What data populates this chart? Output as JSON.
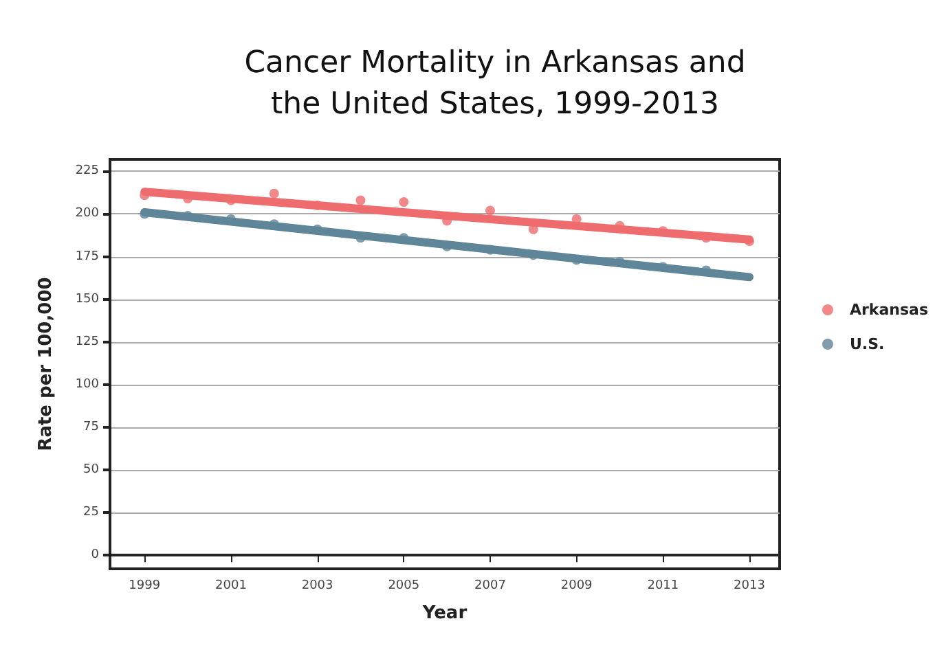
{
  "chart_data": {
    "type": "scatter",
    "title": "Cancer Mortality in Arkansas and\nthe United States, 1999-2013",
    "xlabel": "Year",
    "ylabel": "Rate per 100,000",
    "series": [
      {
        "name": "Arkansas",
        "color": "#ee6b6e",
        "marker": "circle",
        "x": [
          1999,
          2000,
          2001,
          2002,
          2003,
          2004,
          2005,
          2006,
          2007,
          2008,
          2009,
          2010,
          2011,
          2012,
          2013
        ],
        "values": [
          211,
          209,
          208,
          212,
          205,
          208,
          207,
          196,
          202,
          191,
          197,
          193,
          190,
          186,
          184
        ]
      },
      {
        "name": "U.S.",
        "color": "#5f8599",
        "marker": "circle",
        "x": [
          1999,
          2000,
          2001,
          2002,
          2003,
          2004,
          2005,
          2006,
          2007,
          2008,
          2009,
          2010,
          2011,
          2012
        ],
        "values": [
          200,
          199,
          197,
          194,
          191,
          186,
          186,
          181,
          179,
          176,
          173,
          172,
          169,
          167
        ]
      },
      {
        "type": "line",
        "color": "#ee6b6e",
        "marker": "none",
        "x": [
          1999,
          2013
        ],
        "values": [
          213,
          185
        ]
      },
      {
        "type": "line",
        "color": "#5f8599",
        "marker": "none",
        "x": [
          1999,
          2013
        ],
        "values": [
          201,
          163
        ]
      }
    ],
    "xlim": [
      1998.2,
      2013.7
    ],
    "xticks": [
      1999,
      2001,
      2003,
      2005,
      2007,
      2009,
      2011,
      2013
    ],
    "ylim": [
      -8,
      232
    ],
    "yticks": [
      0,
      25,
      50,
      75,
      100,
      125,
      150,
      175,
      200,
      225
    ],
    "grid": "y",
    "legend": "right",
    "line_style": "solid"
  }
}
